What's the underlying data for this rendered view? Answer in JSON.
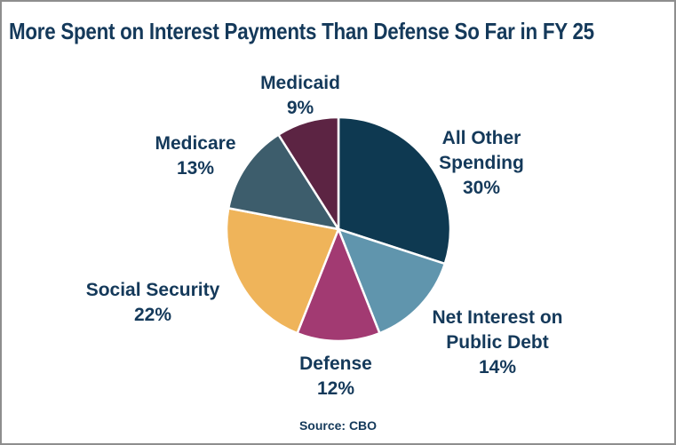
{
  "title": "More Spent on Interest Payments Than Defense So Far in FY 25",
  "source": "Source: CBO",
  "colors": {
    "text": "#14395a",
    "slice_separator": "#ffffff",
    "frame_border": "#8e8e8e",
    "background": "#ffffff"
  },
  "chart_data": {
    "type": "pie",
    "title": "More Spent on Interest Payments Than Defense So Far in FY 25",
    "source": "Source: CBO",
    "start_angle_deg": 0,
    "direction": "clockwise",
    "legend": "none",
    "labels_position": "outside",
    "labels_show_percent": true,
    "slices": [
      {
        "id": "all-other-spending",
        "label": "All Other Spending",
        "value": 30,
        "color": "#0e3951"
      },
      {
        "id": "net-interest-on-public-debt",
        "label": "Net Interest on Public Debt",
        "value": 14,
        "color": "#6095ad"
      },
      {
        "id": "defense",
        "label": "Defense",
        "value": 12,
        "color": "#a23a72"
      },
      {
        "id": "social-security",
        "label": "Social Security",
        "value": 22,
        "color": "#efb45a"
      },
      {
        "id": "medicare",
        "label": "Medicare",
        "value": 13,
        "color": "#3d5d6c"
      },
      {
        "id": "medicaid",
        "label": "Medicaid",
        "value": 9,
        "color": "#5c2443"
      }
    ]
  },
  "callouts": [
    {
      "id": "all-other-spending",
      "lines": [
        "All Other",
        "Spending"
      ],
      "pct": "30%"
    },
    {
      "id": "net-interest-on-public-debt",
      "lines": [
        "Net Interest on",
        "Public Debt"
      ],
      "pct": "14%"
    },
    {
      "id": "defense",
      "lines": [
        "Defense"
      ],
      "pct": "12%"
    },
    {
      "id": "social-security",
      "lines": [
        "Social Security"
      ],
      "pct": "22%"
    },
    {
      "id": "medicare",
      "lines": [
        "Medicare"
      ],
      "pct": "13%"
    },
    {
      "id": "medicaid",
      "lines": [
        "Medicaid"
      ],
      "pct": "9%"
    }
  ]
}
